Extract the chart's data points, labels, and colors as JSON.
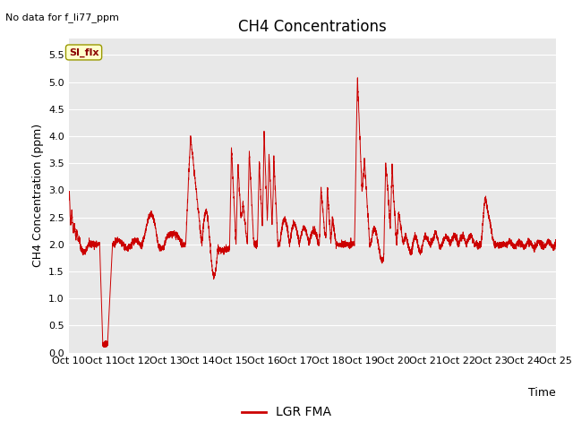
{
  "title": "CH4 Concentrations",
  "xlabel": "Time",
  "ylabel": "CH4 Concentration (ppm)",
  "top_left_text": "No data for f_li77_ppm",
  "si_flx_label": "SI_flx",
  "legend_label": "LGR FMA",
  "line_color": "#cc0000",
  "ylim": [
    0.0,
    5.8
  ],
  "yticks": [
    0.0,
    0.5,
    1.0,
    1.5,
    2.0,
    2.5,
    3.0,
    3.5,
    4.0,
    4.5,
    5.0,
    5.5
  ],
  "xtick_labels": [
    "Oct 10",
    "Oct 11",
    "Oct 12",
    "Oct 13",
    "Oct 14",
    "Oct 15",
    "Oct 16",
    "Oct 17",
    "Oct 18",
    "Oct 19",
    "Oct 20",
    "Oct 21",
    "Oct 22",
    "Oct 23",
    "Oct 24",
    "Oct 25"
  ],
  "background_color": "#ffffff",
  "plot_bg_color": "#e8e8e8",
  "grid_color": "#ffffff",
  "title_fontsize": 12,
  "label_fontsize": 9,
  "tick_fontsize": 8,
  "legend_fontsize": 10
}
